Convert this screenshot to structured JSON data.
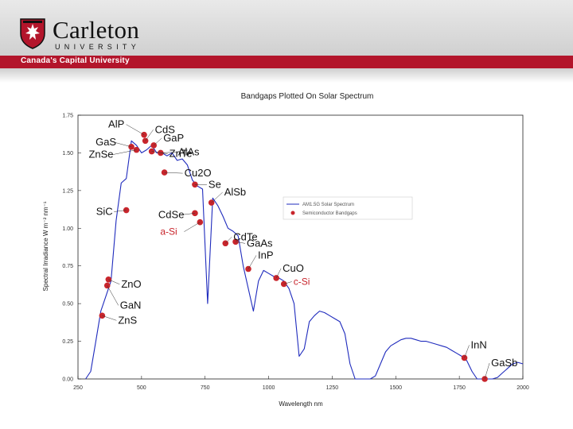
{
  "header": {
    "university_name": "Carleton",
    "university_sub": "UNIVERSITY",
    "tagline": "Canada's Capital University",
    "crest_icon": "carleton-crest-icon",
    "accent_color": "#b3152b"
  },
  "chart_data": {
    "type": "line",
    "title": "Bandgaps Plotted On Solar Spectrum",
    "xlabel": "Wavelength nm",
    "ylabel": "Spectral Irradiance W m⁻² nm⁻¹",
    "xlim": [
      250,
      2000
    ],
    "ylim": [
      0,
      1.75
    ],
    "xticks": [
      "250",
      "500",
      "750",
      "1000",
      "1250",
      "1500",
      "1750",
      "2000"
    ],
    "yticks": [
      "0.00",
      "0.25",
      "0.50",
      "0.75",
      "1.00",
      "1.25",
      "1.50",
      "1.75"
    ],
    "legend": {
      "placement": "right",
      "entries": [
        "AM1.5G Solar Spectrum",
        "Semiconductor Bandgaps"
      ]
    },
    "series": [
      {
        "name": "AM1.5G Solar Spectrum",
        "color": "#1f2bbd",
        "x": [
          280,
          300,
          320,
          340,
          360,
          380,
          400,
          420,
          440,
          460,
          480,
          500,
          520,
          540,
          560,
          580,
          600,
          620,
          640,
          660,
          680,
          700,
          720,
          740,
          760,
          780,
          800,
          820,
          840,
          860,
          880,
          900,
          920,
          940,
          960,
          980,
          1000,
          1020,
          1040,
          1060,
          1080,
          1100,
          1120,
          1140,
          1160,
          1180,
          1200,
          1220,
          1240,
          1260,
          1280,
          1300,
          1320,
          1340,
          1360,
          1380,
          1400,
          1420,
          1440,
          1460,
          1480,
          1500,
          1520,
          1540,
          1560,
          1580,
          1600,
          1620,
          1640,
          1660,
          1680,
          1700,
          1720,
          1740,
          1760,
          1780,
          1800,
          1820,
          1840,
          1860,
          1880,
          1900,
          1920,
          1940,
          1960,
          1980,
          2000
        ],
        "y": [
          0.0,
          0.05,
          0.25,
          0.45,
          0.55,
          0.65,
          1.05,
          1.3,
          1.33,
          1.58,
          1.55,
          1.5,
          1.52,
          1.55,
          1.5,
          1.5,
          1.48,
          1.5,
          1.45,
          1.46,
          1.42,
          1.32,
          1.28,
          1.26,
          0.5,
          1.2,
          1.15,
          1.08,
          1.0,
          0.98,
          0.95,
          0.75,
          0.6,
          0.45,
          0.65,
          0.72,
          0.7,
          0.68,
          0.67,
          0.65,
          0.6,
          0.5,
          0.15,
          0.2,
          0.38,
          0.42,
          0.45,
          0.44,
          0.42,
          0.4,
          0.38,
          0.3,
          0.1,
          0.0,
          0.0,
          0.0,
          0.0,
          0.02,
          0.1,
          0.18,
          0.22,
          0.24,
          0.26,
          0.27,
          0.27,
          0.26,
          0.25,
          0.25,
          0.24,
          0.23,
          0.22,
          0.21,
          0.19,
          0.17,
          0.15,
          0.12,
          0.05,
          0.0,
          0.0,
          0.0,
          0.0,
          0.01,
          0.04,
          0.07,
          0.1,
          0.11,
          0.1
        ]
      }
    ],
    "bandgaps": [
      {
        "label": "AlP",
        "x": 510,
        "y": 1.62,
        "color": "#111"
      },
      {
        "label": "CdS",
        "x": 515,
        "y": 1.58,
        "color": "#111"
      },
      {
        "label": "GaS",
        "x": 460,
        "y": 1.54,
        "color": "#111"
      },
      {
        "label": "GaP",
        "x": 548,
        "y": 1.55,
        "color": "#111"
      },
      {
        "label": "ZnSe",
        "x": 480,
        "y": 1.52,
        "color": "#111"
      },
      {
        "label": "ZnTe",
        "x": 540,
        "y": 1.51,
        "color": "#111"
      },
      {
        "label": "AlAs",
        "x": 575,
        "y": 1.5,
        "color": "#111"
      },
      {
        "label": "Cu2O",
        "x": 590,
        "y": 1.37,
        "color": "#111"
      },
      {
        "label": "Se",
        "x": 710,
        "y": 1.29,
        "color": "#111"
      },
      {
        "label": "AlSb",
        "x": 775,
        "y": 1.17,
        "color": "#111"
      },
      {
        "label": "SiC",
        "x": 440,
        "y": 1.12,
        "color": "#111"
      },
      {
        "label": "CdSe",
        "x": 710,
        "y": 1.1,
        "color": "#111"
      },
      {
        "label": "a-Si",
        "x": 730,
        "y": 1.04,
        "color": "#c8252c"
      },
      {
        "label": "CdTe",
        "x": 830,
        "y": 0.9,
        "color": "#111"
      },
      {
        "label": "GaAs",
        "x": 870,
        "y": 0.91,
        "color": "#111"
      },
      {
        "label": "InP",
        "x": 920,
        "y": 0.73,
        "color": "#111"
      },
      {
        "label": "CuO",
        "x": 1030,
        "y": 0.67,
        "color": "#111"
      },
      {
        "label": "c-Si",
        "x": 1060,
        "y": 0.63,
        "color": "#c8252c"
      },
      {
        "label": "ZnO",
        "x": 370,
        "y": 0.66,
        "color": "#111"
      },
      {
        "label": "GaN",
        "x": 365,
        "y": 0.62,
        "color": "#111"
      },
      {
        "label": "ZnS",
        "x": 345,
        "y": 0.42,
        "color": "#111"
      },
      {
        "label": "InN",
        "x": 1770,
        "y": 0.14,
        "color": "#111"
      },
      {
        "label": "GaSb",
        "x": 1850,
        "y": 0.0,
        "color": "#111"
      }
    ]
  }
}
